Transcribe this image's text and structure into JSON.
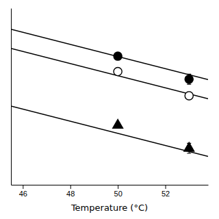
{
  "chart_data": {
    "type": "scatter",
    "xlabel": "Temperature (°C)",
    "xlim": [
      45.5,
      53.8
    ],
    "xticks": [
      46,
      48,
      50,
      52
    ],
    "ylim": [
      -3.8,
      0.8
    ],
    "tick_labels": "x",
    "series": [
      {
        "type": "line",
        "color": "black",
        "line_style": "solid",
        "x": [
          45.5,
          53.8
        ],
        "values": [
          0.251,
          -1.0604
        ]
      },
      {
        "type": "scatter",
        "color": "black",
        "marker": "circle",
        "x": [
          50,
          53
        ],
        "values": [
          -0.45,
          -1.05
        ],
        "errors": [
          0.08,
          0.13
        ]
      },
      {
        "type": "line",
        "color": "black",
        "line_style": "solid",
        "x": [
          45.5,
          53.8
        ],
        "values": [
          -0.249,
          -1.5604
        ]
      },
      {
        "type": "scatter",
        "color": "black",
        "marker": "circle-open",
        "x": [
          50,
          53
        ],
        "values": [
          -0.85,
          -1.48
        ],
        "errors": [
          0.06,
          0.1
        ]
      },
      {
        "type": "line",
        "color": "black",
        "line_style": "solid",
        "x": [
          45.5,
          53.8
        ],
        "values": [
          -1.749,
          -3.0604
        ]
      },
      {
        "type": "scatter",
        "color": "black",
        "marker": "triangle-up",
        "x": [
          50,
          53
        ],
        "values": [
          -2.25,
          -2.85
        ],
        "errors": [
          0.07,
          0.13
        ]
      }
    ]
  }
}
